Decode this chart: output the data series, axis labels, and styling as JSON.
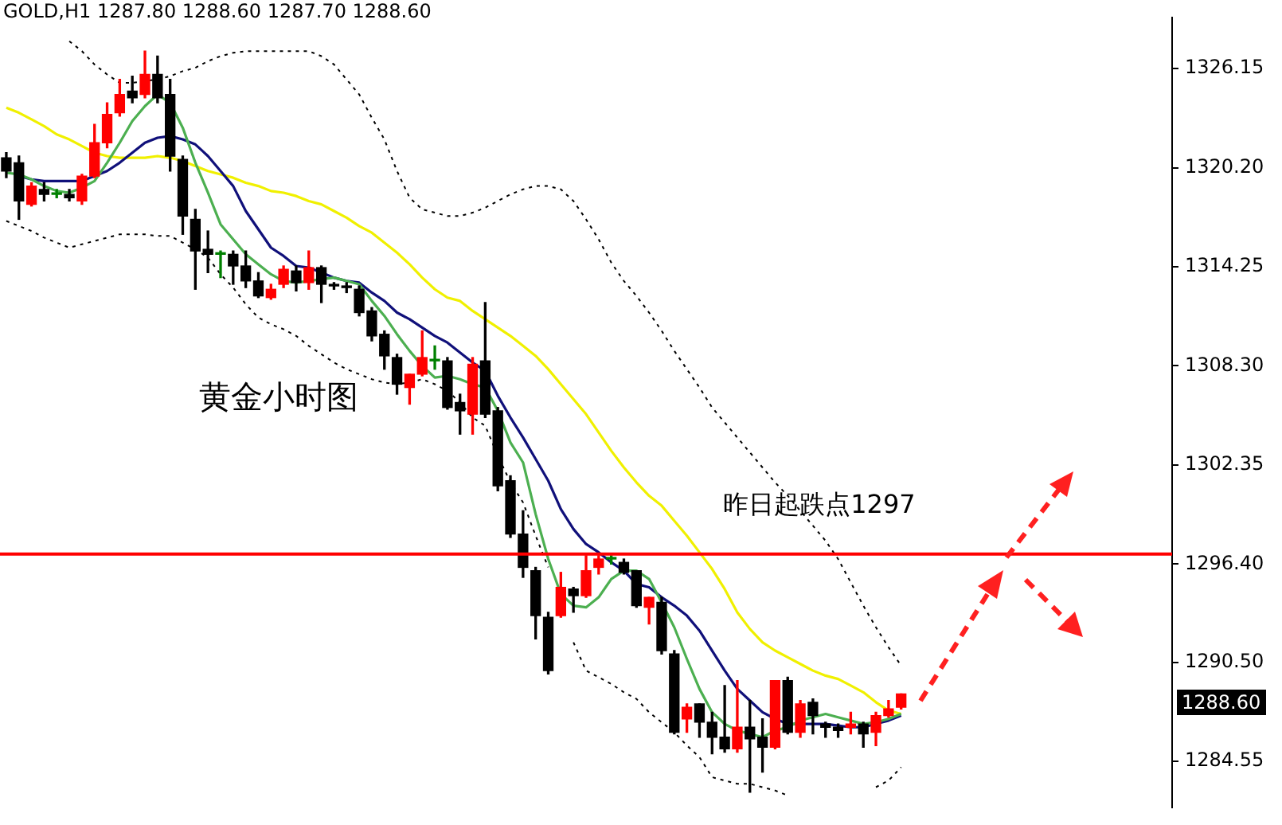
{
  "chart_data": {
    "type": "candlestick",
    "title": "GOLD,H1  1287.80 1288.60 1287.70 1288.60",
    "categories": [
      null,
      null,
      null,
      null,
      null,
      null,
      null,
      null,
      null,
      null,
      null,
      null,
      null,
      null,
      null,
      null,
      null,
      null,
      null,
      null,
      null,
      null,
      null,
      null,
      null,
      null,
      null,
      null,
      null,
      null,
      null,
      null,
      null,
      null,
      null,
      null,
      null,
      null,
      null,
      null,
      null,
      null,
      null,
      null,
      null,
      null,
      null,
      null,
      null,
      null,
      null,
      null,
      null,
      null,
      null,
      null,
      null,
      null,
      null,
      null,
      null,
      null,
      null,
      null,
      null,
      null,
      null,
      null,
      null,
      null,
      null,
      null
    ],
    "ohlc": [
      [
        1320.8,
        1321.1,
        1319.6,
        1320.0
      ],
      [
        1320.5,
        1320.9,
        1317.1,
        1318.2
      ],
      [
        1318.0,
        1319.3,
        1317.9,
        1319.1
      ],
      [
        1318.9,
        1319.3,
        1318.2,
        1318.6
      ],
      [
        1318.6,
        1318.9,
        1318.4,
        1318.6
      ],
      [
        1318.6,
        1318.9,
        1318.2,
        1318.4
      ],
      [
        1318.2,
        1319.8,
        1318.0,
        1319.7
      ],
      [
        1319.7,
        1322.8,
        1319.6,
        1321.7
      ],
      [
        1321.7,
        1324.1,
        1321.4,
        1323.4
      ],
      [
        1323.5,
        1325.5,
        1323.3,
        1324.6
      ],
      [
        1324.8,
        1325.7,
        1324.1,
        1324.4
      ],
      [
        1324.6,
        1327.2,
        1324.4,
        1325.8
      ],
      [
        1325.8,
        1326.9,
        1324.1,
        1324.4
      ],
      [
        1324.6,
        1325.5,
        1320.0,
        1320.9
      ],
      [
        1320.7,
        1320.9,
        1316.2,
        1317.3
      ],
      [
        1317.1,
        1317.7,
        1312.9,
        1315.2
      ],
      [
        1315.3,
        1316.4,
        1313.9,
        1315.0
      ],
      [
        1315.0,
        1315.2,
        1313.6,
        1315.0
      ],
      [
        1315.0,
        1315.2,
        1313.2,
        1314.3
      ],
      [
        1314.3,
        1315.2,
        1313.0,
        1313.4
      ],
      [
        1313.4,
        1313.9,
        1312.4,
        1312.5
      ],
      [
        1312.4,
        1313.2,
        1312.3,
        1312.9
      ],
      [
        1313.2,
        1314.3,
        1313.0,
        1314.1
      ],
      [
        1314.0,
        1314.3,
        1312.8,
        1313.3
      ],
      [
        1313.3,
        1315.2,
        1312.9,
        1314.2
      ],
      [
        1314.2,
        1314.3,
        1312.1,
        1313.2
      ],
      [
        1313.1,
        1313.3,
        1312.9,
        1313.1
      ],
      [
        1313.1,
        1313.3,
        1312.7,
        1313.0
      ],
      [
        1312.9,
        1313.1,
        1311.3,
        1311.5
      ],
      [
        1311.6,
        1311.8,
        1309.8,
        1310.1
      ],
      [
        1310.2,
        1310.4,
        1308.1,
        1308.9
      ],
      [
        1308.8,
        1309.0,
        1306.6,
        1307.2
      ],
      [
        1307.0,
        1307.8,
        1306.0,
        1307.8
      ],
      [
        1307.8,
        1310.4,
        1307.7,
        1308.8
      ],
      [
        1308.6,
        1309.5,
        1308.1,
        1308.6
      ],
      [
        1308.6,
        1308.8,
        1305.7,
        1305.8
      ],
      [
        1306.1,
        1306.6,
        1304.2,
        1305.6
      ],
      [
        1305.4,
        1308.8,
        1304.2,
        1308.4
      ],
      [
        1308.6,
        1312.1,
        1305.2,
        1305.4
      ],
      [
        1305.6,
        1305.8,
        1300.8,
        1301.1
      ],
      [
        1301.4,
        1301.7,
        1298.0,
        1298.2
      ],
      [
        1298.2,
        1299.6,
        1295.6,
        1296.2
      ],
      [
        1296.0,
        1296.2,
        1291.9,
        1293.3
      ],
      [
        1293.2,
        1293.5,
        1289.8,
        1290.0
      ],
      [
        1293.3,
        1295.9,
        1293.2,
        1295.0
      ],
      [
        1294.9,
        1295.0,
        1293.5,
        1294.5
      ],
      [
        1294.5,
        1296.9,
        1294.4,
        1296.0
      ],
      [
        1296.2,
        1296.9,
        1295.8,
        1296.7
      ],
      [
        1296.7,
        1296.9,
        1296.4,
        1296.7
      ],
      [
        1296.5,
        1296.7,
        1295.8,
        1295.9
      ],
      [
        1296.0,
        1296.0,
        1293.8,
        1293.9
      ],
      [
        1293.8,
        1294.4,
        1292.8,
        1294.4
      ],
      [
        1294.1,
        1294.4,
        1291.0,
        1291.2
      ],
      [
        1291.0,
        1291.2,
        1286.2,
        1286.3
      ],
      [
        1287.1,
        1288.0,
        1286.3,
        1287.8
      ],
      [
        1288.0,
        1288.0,
        1286.0,
        1286.9
      ],
      [
        1286.9,
        1287.5,
        1285.0,
        1286.0
      ],
      [
        1286.0,
        1289.1,
        1285.1,
        1285.3
      ],
      [
        1285.3,
        1289.4,
        1285.1,
        1286.6
      ],
      [
        1286.6,
        1288.2,
        1282.7,
        1285.9
      ],
      [
        1286.0,
        1287.1,
        1283.9,
        1285.4
      ],
      [
        1285.4,
        1289.4,
        1285.3,
        1289.4
      ],
      [
        1289.4,
        1289.6,
        1286.2,
        1286.3
      ],
      [
        1286.3,
        1288.2,
        1286.0,
        1288.0
      ],
      [
        1288.1,
        1288.3,
        1286.2,
        1287.3
      ],
      [
        1286.8,
        1286.9,
        1286.0,
        1286.6
      ],
      [
        1286.6,
        1286.8,
        1286.0,
        1286.4
      ],
      [
        1286.6,
        1287.5,
        1286.2,
        1286.8
      ],
      [
        1286.8,
        1286.9,
        1285.4,
        1286.2
      ],
      [
        1286.3,
        1287.5,
        1285.5,
        1287.3
      ],
      [
        1287.3,
        1288.2,
        1287.2,
        1287.7
      ],
      [
        1287.8,
        1288.6,
        1287.7,
        1288.6
      ]
    ],
    "colors": [
      "#000000",
      "#000000",
      "#ff0000",
      "#000000",
      "#008000",
      "#000000",
      "#ff0000",
      "#ff0000",
      "#ff0000",
      "#ff0000",
      "#000000",
      "#ff0000",
      "#000000",
      "#000000",
      "#000000",
      "#000000",
      "#000000",
      "#008000",
      "#000000",
      "#000000",
      "#000000",
      "#ff0000",
      "#ff0000",
      "#000000",
      "#ff0000",
      "#000000",
      "#000000",
      "#000000",
      "#000000",
      "#000000",
      "#000000",
      "#000000",
      "#ff0000",
      "#ff0000",
      "#008000",
      "#000000",
      "#000000",
      "#ff0000",
      "#000000",
      "#000000",
      "#000000",
      "#000000",
      "#000000",
      "#000000",
      "#ff0000",
      "#000000",
      "#ff0000",
      "#ff0000",
      "#008000",
      "#000000",
      "#000000",
      "#ff0000",
      "#000000",
      "#000000",
      "#ff0000",
      "#000000",
      "#000000",
      "#000000",
      "#ff0000",
      "#000000",
      "#000000",
      "#ff0000",
      "#000000",
      "#ff0000",
      "#000000",
      "#000000",
      "#000000",
      "#ff0000",
      "#000000",
      "#ff0000",
      "#ff0000",
      "#ff0000"
    ],
    "series": [
      {
        "type": "line",
        "color": "#4caf50",
        "line_style": "solid",
        "values": [
          1319.9,
          1319.8,
          1319.5,
          1319.1,
          1318.8,
          1318.7,
          1319.0,
          1319.4,
          1320.5,
          1321.7,
          1323.0,
          1323.9,
          1324.6,
          1324.1,
          1322.6,
          1320.5,
          1318.7,
          1316.8,
          1315.9,
          1315.0,
          1314.4,
          1313.8,
          1313.4,
          1313.3,
          1313.4,
          1313.5,
          1313.6,
          1313.4,
          1313.2,
          1312.2,
          1311.3,
          1310.2,
          1309.2,
          1308.3,
          1307.6,
          1307.7,
          1307.5,
          1307.2,
          1307.0,
          1305.6,
          1303.7,
          1302.5,
          1299.4,
          1296.7,
          1294.6,
          1293.9,
          1293.8,
          1294.4,
          1295.5,
          1296.0,
          1296.0,
          1295.5,
          1294.1,
          1292.6,
          1290.7,
          1288.9,
          1287.5,
          1286.8,
          1286.4,
          1286.2,
          1286.0,
          1286.4,
          1286.6,
          1287.0,
          1287.2,
          1287.4,
          1287.2,
          1287.0,
          1286.8,
          1286.9,
          1287.1,
          1287.4
        ]
      },
      {
        "type": "line",
        "color": "#10107a",
        "line_style": "solid",
        "values": [
          null,
          1319.7,
          1319.5,
          1319.4,
          1319.4,
          1319.4,
          1319.4,
          1319.7,
          1320.0,
          1320.5,
          1321.1,
          1321.7,
          1322.0,
          1322.1,
          1321.9,
          1321.6,
          1320.9,
          1320.0,
          1319.1,
          1317.6,
          1316.5,
          1315.4,
          1314.9,
          1314.3,
          1314.2,
          1313.9,
          1313.6,
          1313.4,
          1313.3,
          1312.7,
          1312.2,
          1311.5,
          1311.1,
          1310.6,
          1310.1,
          1309.7,
          1309.1,
          1308.5,
          1308.0,
          1306.5,
          1305.2,
          1304.0,
          1302.7,
          1301.4,
          1299.7,
          1298.5,
          1297.6,
          1297.1,
          1296.5,
          1296.0,
          1295.2,
          1295.0,
          1294.4,
          1293.9,
          1293.3,
          1292.4,
          1291.2,
          1290.0,
          1288.9,
          1288.2,
          1287.5,
          1287.1,
          1286.8,
          1286.8,
          1286.8,
          1286.8,
          1286.7,
          1286.6,
          1286.6,
          1286.8,
          1287.0,
          1287.3
        ]
      },
      {
        "type": "line",
        "color": "#f0f000",
        "line_style": "solid",
        "values": [
          1323.8,
          1323.5,
          1323.1,
          1322.7,
          1322.2,
          1321.9,
          1321.5,
          1321.1,
          1320.9,
          1320.8,
          1320.8,
          1320.8,
          1320.9,
          1320.8,
          1320.6,
          1320.3,
          1320.0,
          1319.8,
          1319.6,
          1319.3,
          1319.1,
          1318.8,
          1318.7,
          1318.5,
          1318.2,
          1318.0,
          1317.6,
          1317.2,
          1316.7,
          1316.3,
          1315.7,
          1315.1,
          1314.4,
          1313.6,
          1312.9,
          1312.4,
          1312.2,
          1311.6,
          1311.1,
          1310.6,
          1310.1,
          1309.5,
          1308.9,
          1308.1,
          1307.2,
          1306.3,
          1305.4,
          1304.3,
          1303.2,
          1302.2,
          1301.3,
          1300.5,
          1299.9,
          1299.0,
          1298.1,
          1297.1,
          1296.1,
          1294.9,
          1293.5,
          1292.5,
          1291.7,
          1291.2,
          1290.8,
          1290.4,
          1290.0,
          1289.7,
          1289.5,
          1289.1,
          1288.7,
          1288.1,
          1287.6,
          1287.4
        ]
      },
      {
        "type": "line",
        "color": "#000000",
        "line_style": "dotted",
        "values": [
          null,
          null,
          null,
          null,
          null,
          1327.8,
          1327.2,
          1326.4,
          1325.8,
          1325.3,
          1325.3,
          1325.4,
          1325.5,
          1325.7,
          1326.0,
          1326.2,
          1326.6,
          1326.9,
          1327.1,
          1327.2,
          1327.2,
          1327.2,
          1327.2,
          1327.2,
          1327.2,
          1326.9,
          1326.4,
          1325.5,
          1324.6,
          1323.2,
          1321.9,
          1320.0,
          1318.4,
          1317.7,
          1317.5,
          1317.3,
          1317.3,
          1317.5,
          1317.8,
          1318.2,
          1318.6,
          1318.9,
          1319.1,
          1319.1,
          1318.9,
          1318.2,
          1317.1,
          1315.9,
          1314.5,
          1313.4,
          1312.5,
          1311.5,
          1310.4,
          1309.2,
          1308.1,
          1307.0,
          1305.8,
          1304.9,
          1304.0,
          1303.1,
          1302.2,
          1301.3,
          1300.5,
          1299.6,
          1298.7,
          1297.8,
          1296.7,
          1295.3,
          1293.9,
          1292.6,
          1291.4,
          1290.3
        ]
      },
      {
        "type": "line",
        "color": "#000000",
        "line_style": "dotted",
        "values": [
          1317.0,
          1316.7,
          1316.4,
          1316.0,
          1315.7,
          1315.4,
          1315.6,
          1315.8,
          1316.0,
          1316.2,
          1316.2,
          1316.2,
          1316.1,
          1316.1,
          1315.7,
          1315.3,
          1314.8,
          1313.8,
          1313.0,
          1312.0,
          1311.2,
          1310.8,
          1310.5,
          1310.1,
          1309.5,
          1309.0,
          1308.5,
          1308.1,
          1307.8,
          1307.5,
          1307.3,
          1307.2,
          1307.3,
          1307.5,
          1307.2,
          1306.8,
          1306.1,
          1305.2,
          1304.7,
          1302.9,
          1301.3,
          1300.1,
          1298.1,
          1296.2,
          null,
          1291.7,
          1290.0,
          1289.6,
          1289.2,
          1288.7,
          1288.3,
          1287.5,
          1286.9,
          1286.3,
          1285.5,
          1284.8,
          1283.6,
          1283.4,
          1283.2,
          1283.2,
          1283.0,
          1282.8,
          1282.5,
          null,
          null,
          null,
          null,
          null,
          null,
          1283.0,
          1283.4,
          1284.2
        ]
      }
    ],
    "ylim": [
      1281.8,
      1329.2
    ],
    "yticks": [
      1284.55,
      {
        "value": 1290.5,
        "label": "1290.50"
      },
      {
        "value": 1296.4,
        "label": "1296.40"
      },
      1302.35,
      {
        "value": 1308.3,
        "label": "1308.30"
      },
      1314.25,
      {
        "value": 1320.2,
        "label": "1320.20"
      },
      1326.15
    ],
    "tick_labels": "y",
    "ref_lines": [
      {
        "axis": "y",
        "value": 1297,
        "label": "昨日起跌点1297",
        "color": "#ff0000"
      }
    ],
    "annotations": [
      "黄金小时图",
      "1288.60"
    ]
  }
}
